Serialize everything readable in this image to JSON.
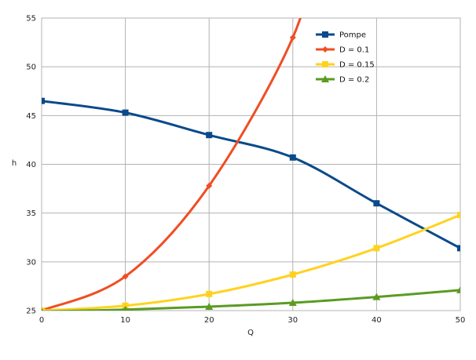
{
  "chart_data": {
    "type": "line",
    "title": "",
    "xlabel": "Q",
    "ylabel": "h",
    "xlim": [
      0,
      50
    ],
    "ylim": [
      25,
      55
    ],
    "x_ticks": [
      "0",
      "10",
      "20",
      "30",
      "40",
      "50"
    ],
    "y_ticks": [
      "25",
      "30",
      "35",
      "40",
      "45",
      "50",
      "55"
    ],
    "grid": true,
    "legend_position": "top-right",
    "series": [
      {
        "name": "Pompe",
        "color": "#0a4a8a",
        "marker": "square",
        "points": [
          [
            0,
            46.5
          ],
          [
            10,
            45.3
          ],
          [
            20,
            43.0
          ],
          [
            30,
            40.7
          ],
          [
            40,
            36.0
          ],
          [
            50,
            31.4
          ]
        ]
      },
      {
        "name": "D = 0.1",
        "color": "#f04e23",
        "marker": "diamond",
        "points": [
          [
            0,
            25.0
          ],
          [
            10,
            28.5
          ],
          [
            20,
            37.8
          ],
          [
            30,
            53.0
          ]
        ]
      },
      {
        "name": "D = 0.15",
        "color": "#ffd21f",
        "marker": "square",
        "points": [
          [
            0,
            25.0
          ],
          [
            10,
            25.5
          ],
          [
            20,
            26.7
          ],
          [
            30,
            28.7
          ],
          [
            40,
            31.4
          ],
          [
            50,
            34.8
          ]
        ]
      },
      {
        "name": "D = 0.2",
        "color": "#5b9b22",
        "marker": "triangle",
        "points": [
          [
            0,
            24.9
          ],
          [
            10,
            25.1
          ],
          [
            20,
            25.4
          ],
          [
            30,
            25.8
          ],
          [
            40,
            26.4
          ],
          [
            50,
            27.1
          ]
        ]
      }
    ]
  }
}
